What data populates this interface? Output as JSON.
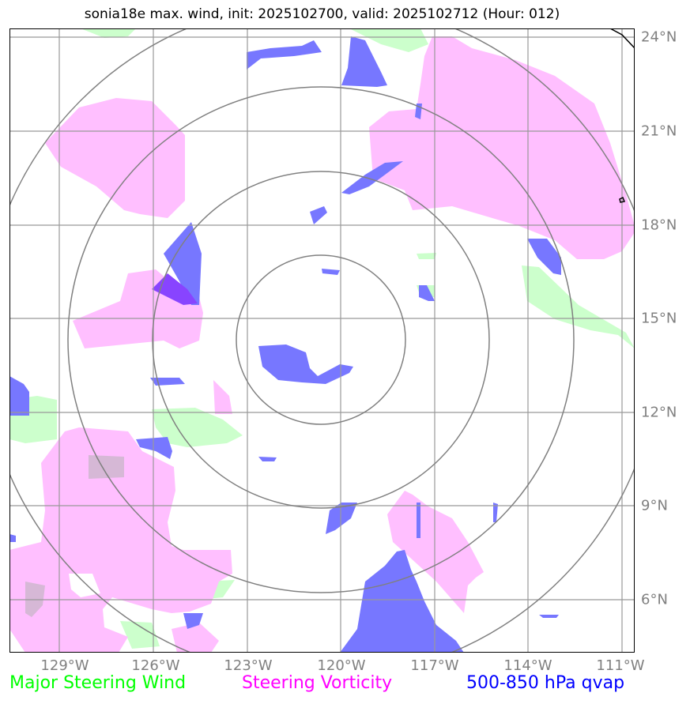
{
  "title": "sonia18e max. wind, init: 2025102700, valid: 2025102712 (Hour: 012)",
  "lat_labels": [
    "24°N",
    "21°N",
    "18°N",
    "15°N",
    "12°N",
    "9°N",
    "6°N"
  ],
  "lon_labels": [
    "129°W",
    "126°W",
    "123°W",
    "120°W",
    "117°W",
    "114°W",
    "111°W"
  ],
  "legend": {
    "wind": {
      "label": "Major Steering Wind",
      "color": "#00ff00"
    },
    "vorticity": {
      "label": "Steering Vorticity",
      "color": "#ff00ff"
    },
    "qvap": {
      "label": "500-850 hPa qvap",
      "color": "#0000ff"
    }
  },
  "map": {
    "lat_range": [
      4.5,
      24.5
    ],
    "lon_range": [
      -130,
      -110
    ],
    "grid_lats": [
      24,
      21,
      18,
      15,
      12,
      9,
      6
    ],
    "grid_lons": [
      -129,
      -126,
      -123,
      -120,
      -117,
      -114,
      -111
    ],
    "range_rings": 4,
    "colors": {
      "wind_fill": "#ccffcc",
      "vorticity_fill": "#ffbfff",
      "qvap_fill": "#7777ff",
      "overlap_fill": "#8844ff",
      "grid": "#999999",
      "ring": "#808080"
    }
  }
}
